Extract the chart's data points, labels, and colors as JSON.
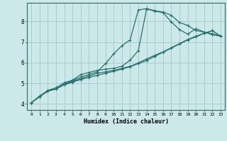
{
  "xlabel": "Humidex (Indice chaleur)",
  "bg_color": "#cce8e8",
  "grid_color": "#aacccc",
  "line_color": "#2a7070",
  "xlim": [
    -0.5,
    23.5
  ],
  "ylim": [
    3.7,
    8.9
  ],
  "xticks": [
    0,
    1,
    2,
    3,
    4,
    5,
    6,
    7,
    8,
    9,
    10,
    11,
    12,
    13,
    14,
    15,
    16,
    17,
    18,
    19,
    20,
    21,
    22,
    23
  ],
  "yticks": [
    4,
    5,
    6,
    7,
    8
  ],
  "line1_x": [
    0,
    1,
    2,
    3,
    4,
    5,
    6,
    7,
    8,
    9,
    10,
    11,
    12,
    13,
    14,
    15,
    16,
    17,
    18,
    19,
    20,
    21,
    22,
    23
  ],
  "line1_y": [
    4.05,
    4.35,
    4.62,
    4.72,
    4.92,
    5.05,
    5.18,
    5.28,
    5.38,
    5.48,
    5.58,
    5.68,
    5.8,
    5.95,
    6.1,
    6.3,
    6.5,
    6.7,
    6.9,
    7.1,
    7.25,
    7.42,
    7.55,
    7.28
  ],
  "line2_x": [
    0,
    1,
    2,
    3,
    4,
    5,
    6,
    7,
    8,
    9,
    10,
    11,
    12,
    13,
    14,
    15,
    16,
    17,
    18,
    19,
    20,
    21,
    22,
    23
  ],
  "line2_y": [
    4.05,
    4.35,
    4.62,
    4.72,
    4.95,
    5.12,
    5.3,
    5.42,
    5.55,
    5.95,
    6.42,
    6.82,
    7.1,
    8.55,
    8.62,
    8.52,
    8.45,
    8.3,
    7.95,
    7.8,
    7.55,
    7.48,
    7.4,
    7.28
  ],
  "line3_x": [
    0,
    1,
    2,
    3,
    4,
    5,
    6,
    7,
    8,
    9,
    10,
    11,
    12,
    13,
    14,
    15,
    16,
    17,
    18,
    19,
    20,
    21,
    22,
    23
  ],
  "line3_y": [
    4.05,
    4.35,
    4.62,
    4.72,
    4.95,
    5.08,
    5.22,
    5.35,
    5.48,
    5.55,
    5.62,
    5.72,
    5.82,
    5.98,
    6.18,
    6.35,
    6.52,
    6.72,
    6.92,
    7.12,
    7.28,
    7.42,
    7.55,
    7.28
  ],
  "line4_x": [
    0,
    1,
    2,
    3,
    4,
    5,
    6,
    7,
    8,
    9,
    10,
    11,
    12,
    13,
    14,
    15,
    16,
    17,
    18,
    19,
    20,
    21,
    22,
    23
  ],
  "line4_y": [
    4.05,
    4.38,
    4.65,
    4.78,
    5.02,
    5.15,
    5.42,
    5.52,
    5.62,
    5.68,
    5.72,
    5.82,
    6.12,
    6.58,
    8.6,
    8.5,
    8.42,
    7.98,
    7.6,
    7.38,
    7.65,
    7.48,
    7.35,
    7.28
  ]
}
